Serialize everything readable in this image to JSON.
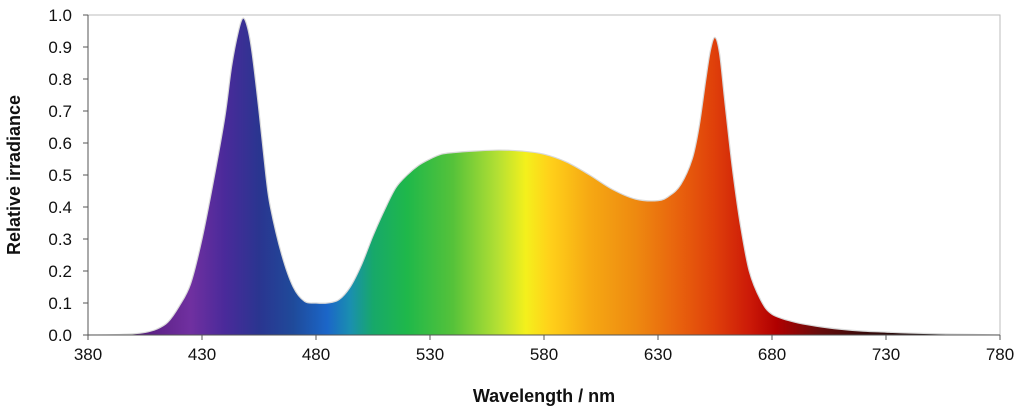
{
  "chart_data": {
    "type": "area",
    "title": "",
    "xlabel": "Wavelength / nm",
    "ylabel": "Relative irradiance",
    "xlim": [
      380,
      780
    ],
    "ylim": [
      0,
      1.0
    ],
    "x_ticks": [
      "380",
      "430",
      "480",
      "530",
      "580",
      "630",
      "680",
      "730",
      "780"
    ],
    "y_ticks": [
      "0.0",
      "0.1",
      "0.2",
      "0.3",
      "0.4",
      "0.5",
      "0.6",
      "0.7",
      "0.8",
      "0.9",
      "1.0"
    ],
    "grid": false,
    "legend": "none",
    "fill": "visible-spectrum-gradient",
    "series": [
      {
        "x": [
          380,
          390,
          400,
          405,
          410,
          415,
          420,
          425,
          430,
          435,
          440,
          443,
          446,
          448,
          450,
          452,
          455,
          458,
          460,
          465,
          470,
          475,
          480,
          485,
          490,
          495,
          500,
          505,
          510,
          515,
          520,
          525,
          530,
          535,
          540,
          550,
          560,
          570,
          580,
          590,
          600,
          610,
          620,
          630,
          635,
          640,
          645,
          648,
          651,
          653,
          655,
          657,
          659,
          661,
          663,
          666,
          670,
          675,
          680,
          690,
          700,
          710,
          720,
          730,
          740,
          760,
          780
        ],
        "y": [
          0.0,
          0.001,
          0.004,
          0.008,
          0.018,
          0.04,
          0.09,
          0.16,
          0.3,
          0.48,
          0.68,
          0.84,
          0.95,
          0.99,
          0.96,
          0.88,
          0.7,
          0.5,
          0.4,
          0.25,
          0.15,
          0.105,
          0.1,
          0.1,
          0.11,
          0.15,
          0.22,
          0.31,
          0.39,
          0.46,
          0.5,
          0.53,
          0.55,
          0.565,
          0.57,
          0.575,
          0.578,
          0.575,
          0.565,
          0.54,
          0.5,
          0.455,
          0.425,
          0.42,
          0.435,
          0.47,
          0.55,
          0.65,
          0.8,
          0.89,
          0.93,
          0.88,
          0.75,
          0.62,
          0.5,
          0.35,
          0.2,
          0.11,
          0.065,
          0.04,
          0.027,
          0.018,
          0.012,
          0.009,
          0.006,
          0.003,
          0.0
        ]
      }
    ]
  }
}
